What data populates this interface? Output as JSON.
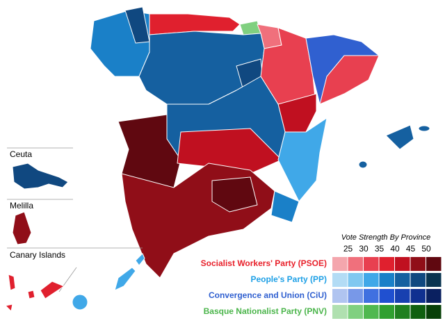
{
  "insets": [
    {
      "label": "Ceuta"
    },
    {
      "label": "Melilla"
    },
    {
      "label": "Canary Islands"
    }
  ],
  "legend": {
    "title": "Vote Strength By Province",
    "ticks": [
      25,
      30,
      35,
      40,
      45,
      50
    ],
    "parties": [
      {
        "name": "Socialist Workers' Party (PSOE)",
        "color": "#e8202a",
        "shades": [
          "#f4a6ad",
          "#f0707c",
          "#e84050",
          "#e0202e",
          "#c01020",
          "#900e18",
          "#600810"
        ]
      },
      {
        "name": "People's Party (PP)",
        "color": "#1ea0e6",
        "shades": [
          "#b3dcf5",
          "#80c8f0",
          "#40a8e8",
          "#1a80c8",
          "#1560a0",
          "#104880",
          "#0a3450"
        ]
      },
      {
        "name": "Convergence and Union (CiU)",
        "color": "#3060d0",
        "shades": [
          "#b0c4f0",
          "#7898e8",
          "#4070e0",
          "#2050d0",
          "#1840b0",
          "#103090",
          "#0a2060"
        ]
      },
      {
        "name": "Basque Nationalist Party (PNV)",
        "color": "#4bb54b",
        "shades": [
          "#b0e0b0",
          "#80d080",
          "#50b850",
          "#30a030",
          "#208020",
          "#106010",
          "#084008"
        ]
      }
    ]
  }
}
